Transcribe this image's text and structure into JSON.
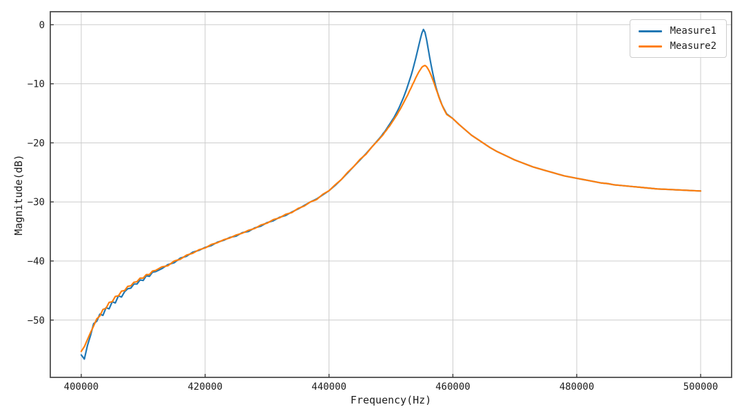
{
  "figure": {
    "background": "#ffffff",
    "grid_color": "#cccccc",
    "spine_color": "#4d4d4d",
    "tick_color": "#3a3a3a",
    "text_color": "#1c1c1c"
  },
  "chart_data": {
    "type": "line",
    "title": "",
    "xlabel": "Frequency(Hz)",
    "ylabel": "Magnitude(dB)",
    "xlim": [
      395000,
      505000
    ],
    "ylim": [
      -59.7,
      2.2
    ],
    "xticks": [
      400000,
      420000,
      440000,
      460000,
      480000,
      500000
    ],
    "yticks": [
      0,
      -10,
      -20,
      -30,
      -40,
      -50
    ],
    "grid": true,
    "legend_position": "upper right",
    "x": [
      400000,
      400500,
      401000,
      401500,
      402000,
      402500,
      403000,
      403500,
      404000,
      404500,
      405000,
      405500,
      406000,
      406500,
      407000,
      407500,
      408000,
      408500,
      409000,
      409500,
      410000,
      410500,
      411000,
      411500,
      412000,
      413000,
      414000,
      415000,
      416000,
      417000,
      418000,
      419000,
      420000,
      421000,
      422000,
      423000,
      424000,
      425000,
      426000,
      427000,
      428000,
      429000,
      430000,
      431000,
      432000,
      433000,
      434000,
      435000,
      436000,
      437000,
      438000,
      439000,
      440000,
      441000,
      442000,
      443000,
      444000,
      445000,
      446000,
      447000,
      448000,
      448250,
      448500,
      448750,
      449000,
      449250,
      449500,
      449750,
      450000,
      450250,
      450500,
      450750,
      451000,
      451250,
      451500,
      451750,
      452000,
      452250,
      452500,
      452750,
      453000,
      453250,
      453500,
      453750,
      454000,
      454250,
      454500,
      454750,
      455000,
      455250,
      455500,
      455750,
      456000,
      456250,
      456500,
      456750,
      457000,
      457250,
      457500,
      457750,
      458000,
      458250,
      458500,
      458750,
      459000,
      460000,
      461000,
      462000,
      463000,
      464000,
      465000,
      466000,
      467000,
      468000,
      469000,
      470000,
      471000,
      472000,
      473000,
      474000,
      475000,
      476000,
      477000,
      478000,
      479000,
      480000,
      481000,
      482000,
      483000,
      484000,
      485000,
      486000,
      487000,
      488000,
      489000,
      490000,
      491000,
      492000,
      493000,
      494000,
      495000,
      496000,
      497000,
      498000,
      499000,
      500000
    ],
    "series": [
      {
        "name": "Measure1",
        "color": "#1f77b4",
        "values": [
          -55.9,
          -56.6,
          -54.3,
          -52.6,
          -50.6,
          -50.2,
          -49.0,
          -49.2,
          -47.9,
          -48.1,
          -46.9,
          -47.1,
          -45.9,
          -46.1,
          -45.2,
          -44.7,
          -44.6,
          -43.9,
          -43.9,
          -43.2,
          -43.3,
          -42.5,
          -42.6,
          -41.9,
          -41.8,
          -41.3,
          -40.6,
          -40.3,
          -39.5,
          -39.2,
          -38.5,
          -38.2,
          -37.7,
          -37.4,
          -36.8,
          -36.5,
          -36.0,
          -35.8,
          -35.2,
          -35.0,
          -34.4,
          -34.1,
          -33.5,
          -33.2,
          -32.6,
          -32.3,
          -31.7,
          -31.2,
          -30.6,
          -30.0,
          -29.5,
          -28.8,
          -28.1,
          -27.2,
          -26.2,
          -25.1,
          -24.0,
          -22.9,
          -21.8,
          -20.6,
          -19.4,
          -19.1,
          -18.8,
          -18.4,
          -18.1,
          -17.7,
          -17.3,
          -16.9,
          -16.5,
          -16.1,
          -15.7,
          -15.2,
          -14.7,
          -14.2,
          -13.6,
          -13.0,
          -12.4,
          -11.7,
          -11.0,
          -10.2,
          -9.4,
          -8.6,
          -7.7,
          -6.7,
          -5.7,
          -4.6,
          -3.5,
          -2.4,
          -1.4,
          -0.8,
          -1.3,
          -2.5,
          -4.0,
          -5.5,
          -6.9,
          -8.2,
          -9.4,
          -10.5,
          -11.4,
          -12.2,
          -12.9,
          -13.6,
          -14.1,
          -14.6,
          -15.1,
          -15.9,
          -16.9,
          -17.8,
          -18.7,
          -19.4,
          -20.1,
          -20.8,
          -21.4,
          -21.9,
          -22.4,
          -22.9,
          -23.3,
          -23.7,
          -24.1,
          -24.4,
          -24.7,
          -25.0,
          -25.3,
          -25.6,
          -25.8,
          -26.0,
          -26.2,
          -26.4,
          -26.6,
          -26.8,
          -26.9,
          -27.1,
          -27.2,
          -27.3,
          -27.4,
          -27.5,
          -27.6,
          -27.7,
          -27.8,
          -27.85,
          -27.9,
          -27.95,
          -28.0,
          -28.05,
          -28.1,
          -28.15
        ]
      },
      {
        "name": "Measure2",
        "color": "#ff7f0e",
        "values": [
          -55.3,
          -54.5,
          -53.3,
          -52.1,
          -51.0,
          -49.8,
          -49.3,
          -48.2,
          -48.0,
          -47.0,
          -46.9,
          -46.0,
          -45.9,
          -45.1,
          -45.0,
          -44.3,
          -44.2,
          -43.6,
          -43.5,
          -42.9,
          -42.9,
          -42.3,
          -42.3,
          -41.7,
          -41.6,
          -41.0,
          -40.8,
          -40.0,
          -39.7,
          -39.0,
          -38.7,
          -38.1,
          -37.8,
          -37.2,
          -36.9,
          -36.4,
          -36.1,
          -35.6,
          -35.3,
          -34.8,
          -34.5,
          -33.9,
          -33.6,
          -33.0,
          -32.7,
          -32.1,
          -31.8,
          -31.1,
          -30.7,
          -30.0,
          -29.6,
          -28.7,
          -28.1,
          -27.1,
          -26.2,
          -25.0,
          -24.0,
          -22.8,
          -21.9,
          -20.6,
          -19.5,
          -19.2,
          -18.9,
          -18.6,
          -18.2,
          -17.9,
          -17.5,
          -17.2,
          -16.8,
          -16.4,
          -16.0,
          -15.6,
          -15.2,
          -14.7,
          -14.3,
          -13.8,
          -13.3,
          -12.8,
          -12.3,
          -11.8,
          -11.2,
          -10.7,
          -10.1,
          -9.6,
          -9.0,
          -8.5,
          -8.0,
          -7.6,
          -7.2,
          -7.0,
          -6.9,
          -7.1,
          -7.5,
          -8.0,
          -8.6,
          -9.3,
          -10.0,
          -10.8,
          -11.5,
          -12.3,
          -13.0,
          -13.6,
          -14.2,
          -14.7,
          -15.2,
          -15.9,
          -16.9,
          -17.8,
          -18.7,
          -19.4,
          -20.1,
          -20.8,
          -21.4,
          -21.9,
          -22.4,
          -22.9,
          -23.3,
          -23.7,
          -24.1,
          -24.4,
          -24.7,
          -25.0,
          -25.3,
          -25.6,
          -25.8,
          -26.0,
          -26.2,
          -26.4,
          -26.6,
          -26.8,
          -26.9,
          -27.1,
          -27.2,
          -27.3,
          -27.4,
          -27.5,
          -27.6,
          -27.7,
          -27.8,
          -27.85,
          -27.9,
          -27.95,
          -28.0,
          -28.05,
          -28.1,
          -28.15
        ]
      }
    ]
  }
}
